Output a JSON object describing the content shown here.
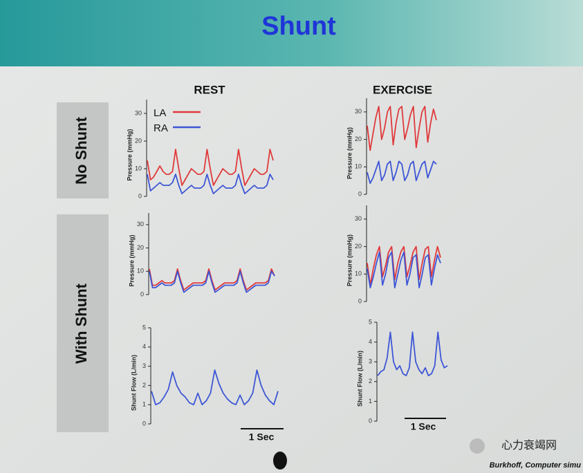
{
  "slide": {
    "title": "Shunt",
    "columns": [
      "REST",
      "EXERCISE"
    ],
    "rows": [
      "No Shunt",
      "With Shunt"
    ],
    "scale_bars": [
      "1 Sec",
      "1 Sec"
    ],
    "watermark": "心力衰竭网",
    "credit": "Burkhoff, Computer simu"
  },
  "chart_data": [
    {
      "type": "line",
      "y_label": "Pressure (mmHg)",
      "ylim": [
        0,
        35
      ],
      "yticks": [
        0,
        10,
        20,
        30
      ],
      "series": [
        {
          "name": "LA",
          "color": "#e0393b",
          "values": [
            13,
            6,
            7,
            9,
            11,
            9,
            8,
            8,
            9,
            17,
            10,
            4,
            6,
            8,
            10,
            9,
            8,
            8,
            9,
            17,
            10,
            4,
            6,
            8,
            10,
            9,
            8,
            8,
            9,
            17,
            10,
            4,
            6,
            8,
            10,
            9,
            8,
            8,
            9,
            17,
            13
          ]
        },
        {
          "name": "RA",
          "color": "#3d55d6",
          "values": [
            8,
            2,
            3,
            4,
            5,
            4,
            4,
            4,
            5,
            8,
            4,
            1,
            2,
            3,
            4,
            3,
            3,
            3,
            4,
            8,
            4,
            1,
            2,
            3,
            4,
            3,
            3,
            3,
            4,
            8,
            4,
            1,
            2,
            3,
            4,
            3,
            3,
            3,
            4,
            8,
            6
          ]
        }
      ]
    },
    {
      "type": "line",
      "y_label": "Pressure (mmHg)",
      "ylim": [
        0,
        35
      ],
      "yticks": [
        0,
        10,
        20,
        30
      ],
      "series": [
        {
          "color": "#e0393b",
          "values": [
            25,
            16,
            22,
            28,
            32,
            20,
            24,
            30,
            32,
            18,
            26,
            31,
            32,
            20,
            24,
            29,
            32,
            17,
            24,
            30,
            32,
            19,
            26,
            31,
            27
          ]
        },
        {
          "color": "#3d55d6",
          "values": [
            8,
            4,
            6,
            9,
            12,
            5,
            7,
            11,
            12,
            5,
            8,
            12,
            11,
            5,
            7,
            11,
            12,
            5,
            8,
            11,
            12,
            6,
            9,
            12,
            11
          ]
        }
      ]
    },
    {
      "type": "line",
      "y_label": "Pressure (mmHg)",
      "ylim": [
        0,
        35
      ],
      "yticks": [
        0,
        10,
        20,
        30
      ],
      "series": [
        {
          "color": "#e0393b",
          "values": [
            11,
            4,
            4,
            5,
            6,
            5,
            5,
            5,
            6,
            11,
            6,
            2,
            3,
            4,
            5,
            5,
            5,
            5,
            6,
            11,
            6,
            2,
            3,
            4,
            5,
            5,
            5,
            5,
            6,
            11,
            6,
            2,
            3,
            4,
            5,
            5,
            5,
            5,
            6,
            11,
            8
          ]
        },
        {
          "color": "#3d55d6",
          "values": [
            10,
            3,
            3,
            4,
            5,
            4,
            4,
            4,
            5,
            10,
            5,
            1,
            2,
            3,
            4,
            4,
            4,
            4,
            5,
            10,
            5,
            1,
            2,
            3,
            4,
            4,
            4,
            4,
            5,
            10,
            5,
            1,
            2,
            3,
            4,
            4,
            4,
            4,
            5,
            10,
            8
          ]
        }
      ]
    },
    {
      "type": "line",
      "y_label": "Pressure (mmHg)",
      "ylim": [
        0,
        35
      ],
      "yticks": [
        0,
        10,
        20,
        30
      ],
      "series": [
        {
          "color": "#e0393b",
          "values": [
            14,
            6,
            12,
            17,
            20,
            9,
            13,
            18,
            20,
            8,
            14,
            18,
            20,
            9,
            13,
            18,
            20,
            8,
            14,
            19,
            20,
            9,
            15,
            20,
            16
          ]
        },
        {
          "color": "#3d55d6",
          "values": [
            12,
            5,
            9,
            14,
            18,
            6,
            10,
            16,
            18,
            5,
            10,
            15,
            18,
            6,
            10,
            16,
            17,
            5,
            10,
            16,
            17,
            6,
            12,
            17,
            14
          ]
        }
      ]
    },
    {
      "type": "line",
      "y_label": "Shunt Flow (L/min)",
      "ylim": [
        0,
        5
      ],
      "yticks": [
        0,
        1,
        2,
        3,
        4,
        5
      ],
      "series": [
        {
          "color": "#3d55d6",
          "values": [
            1.7,
            1.0,
            1.1,
            1.4,
            1.8,
            2.7,
            2.0,
            1.6,
            1.4,
            1.1,
            1.0,
            1.6,
            1.0,
            1.2,
            1.6,
            2.8,
            2.1,
            1.6,
            1.3,
            1.1,
            1.0,
            1.5,
            1.0,
            1.2,
            1.6,
            2.8,
            2.0,
            1.5,
            1.2,
            1.0,
            1.7
          ]
        }
      ]
    },
    {
      "type": "line",
      "y_label": "Shunt Flow (L/min)",
      "ylim": [
        0,
        5
      ],
      "yticks": [
        0,
        1,
        2,
        3,
        4,
        5
      ],
      "series": [
        {
          "color": "#3d55d6",
          "values": [
            2.3,
            2.5,
            2.6,
            3.2,
            4.5,
            3.0,
            2.6,
            2.8,
            2.4,
            2.3,
            2.7,
            4.5,
            3.0,
            2.6,
            2.4,
            2.7,
            2.3,
            2.4,
            2.8,
            4.5,
            3.1,
            2.7,
            2.8
          ]
        }
      ]
    }
  ]
}
